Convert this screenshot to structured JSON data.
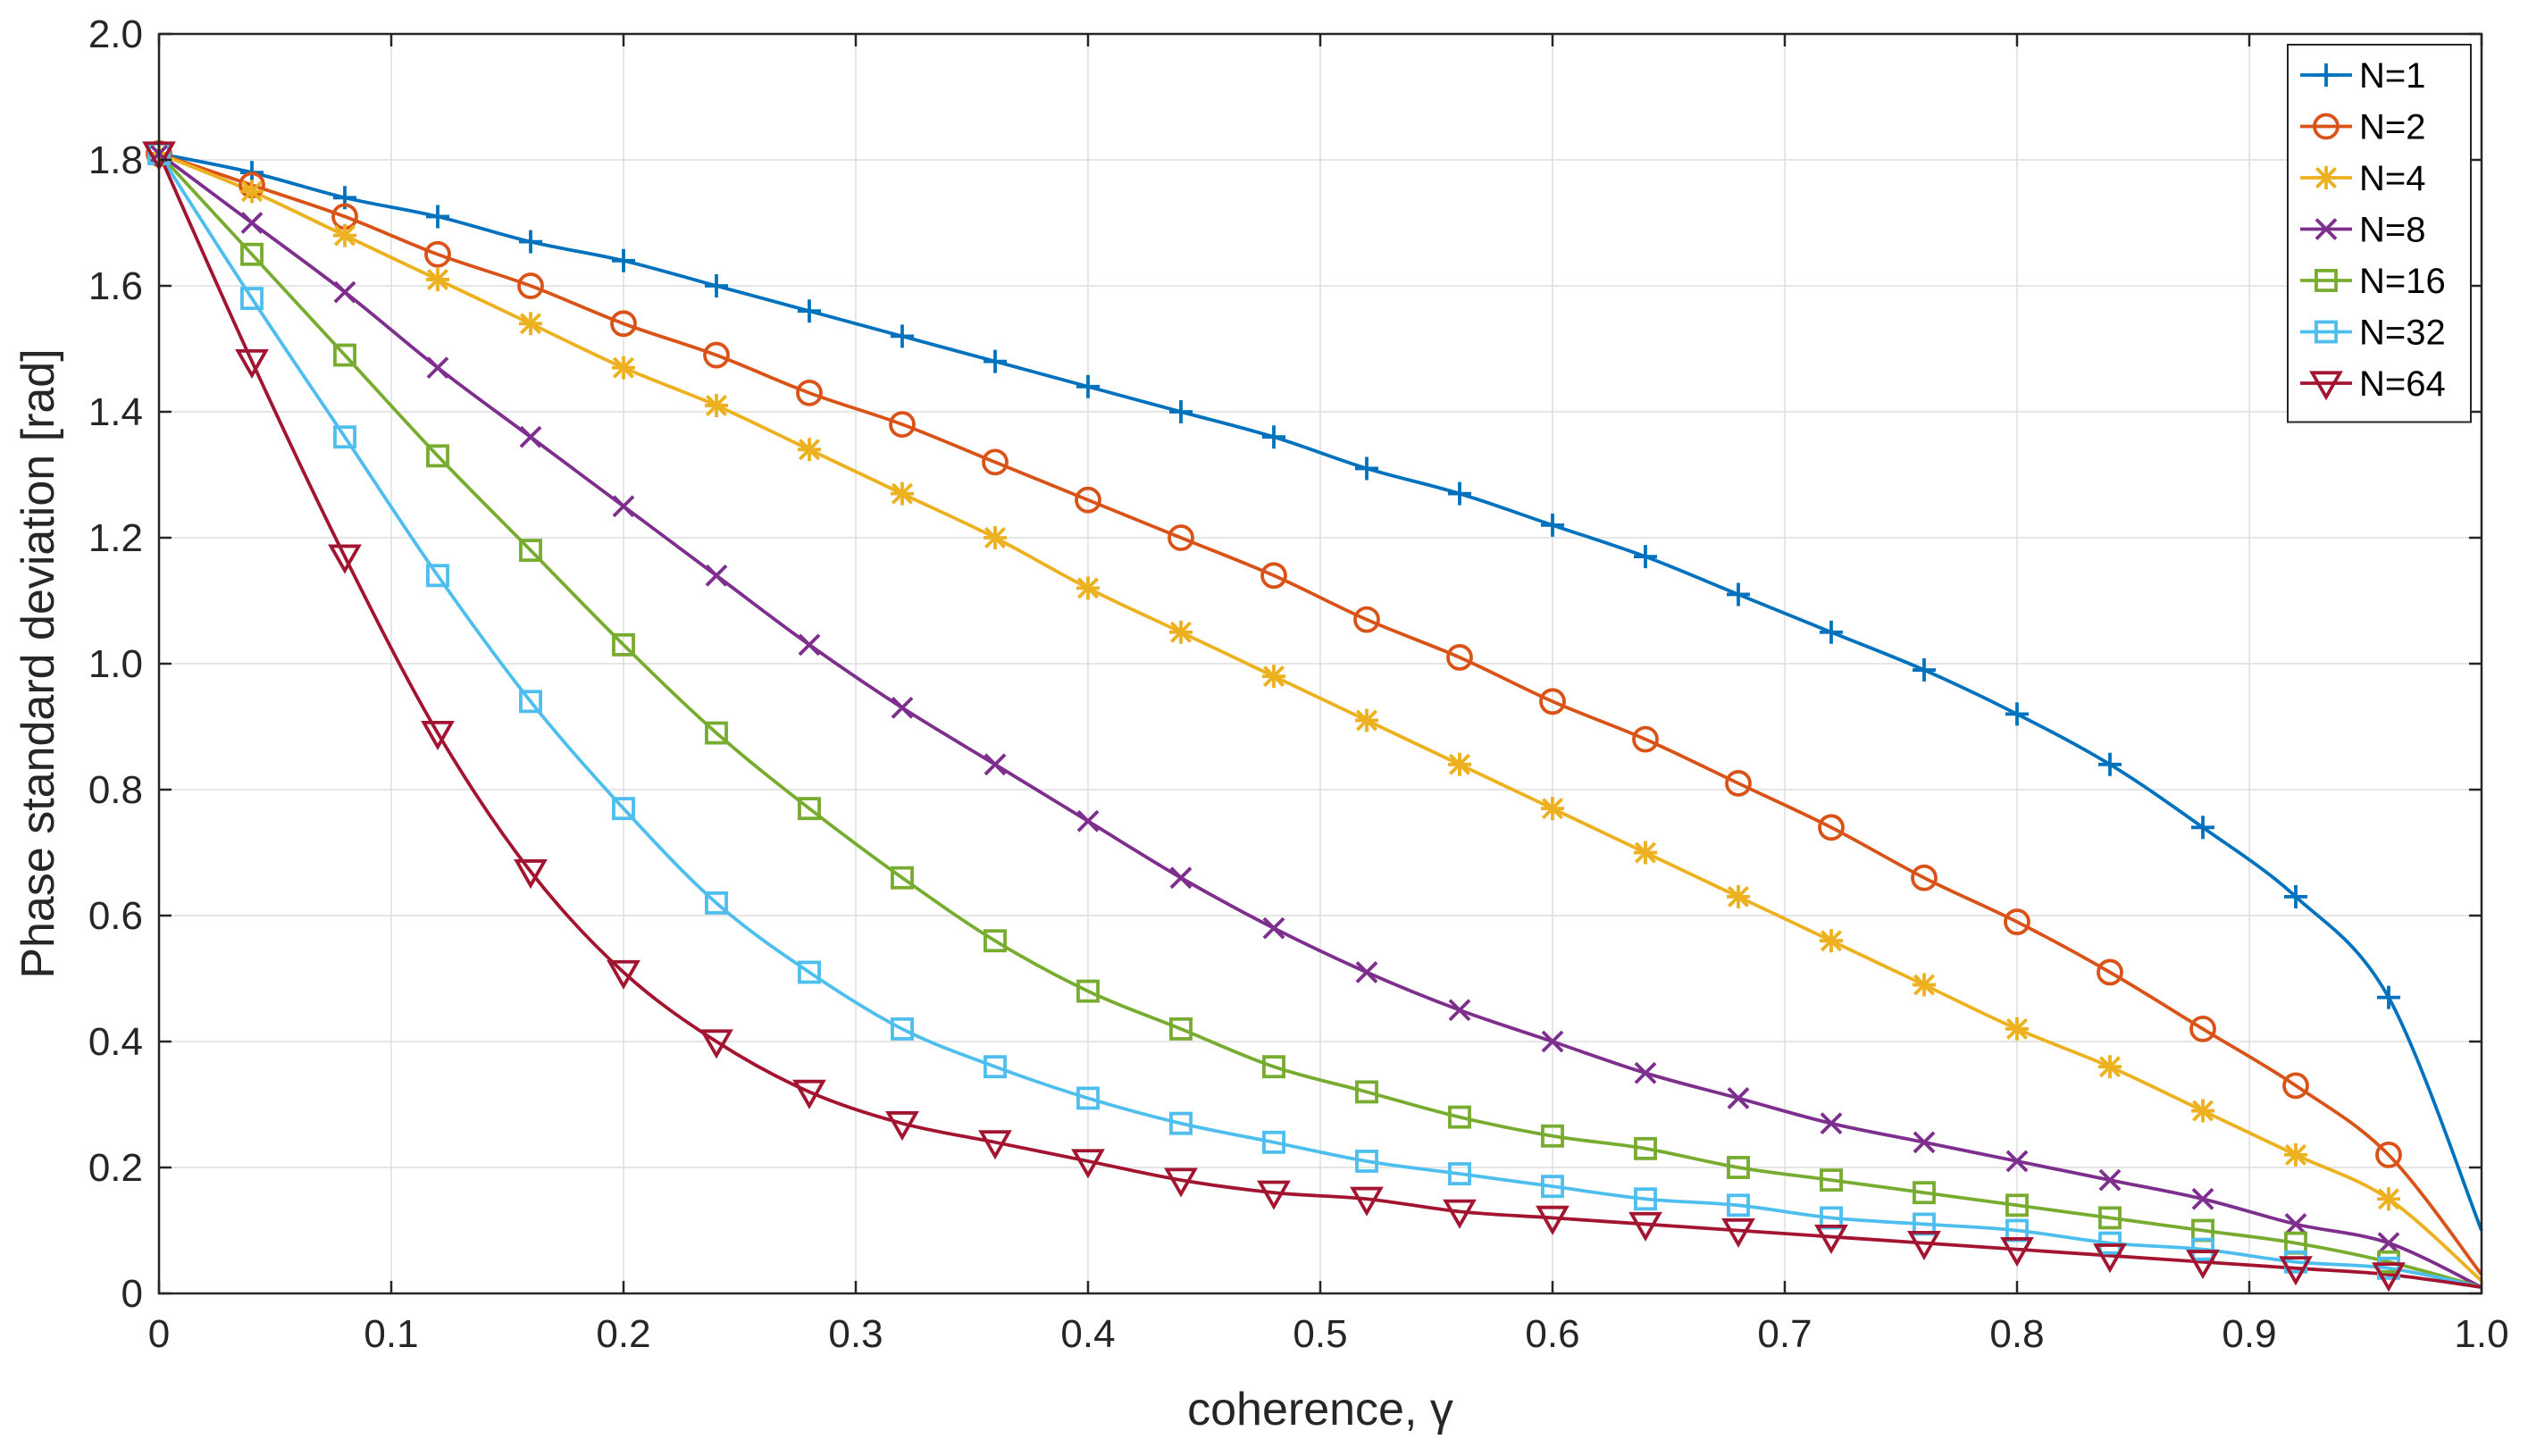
{
  "chart_data": {
    "type": "line",
    "title": "",
    "xlabel": "coherence, γ",
    "ylabel": "Phase standard deviation [rad]",
    "xlim": [
      0,
      1
    ],
    "ylim": [
      0,
      2
    ],
    "xticks": [
      0,
      0.1,
      0.2,
      0.3,
      0.4,
      0.5,
      0.6,
      0.7,
      0.8,
      0.9,
      1.0
    ],
    "xtick_labels": [
      "0",
      "0.1",
      "0.2",
      "0.3",
      "0.4",
      "0.5",
      "0.6",
      "0.7",
      "0.8",
      "0.9",
      "1.0"
    ],
    "yticks": [
      0,
      0.2,
      0.4,
      0.6,
      0.8,
      1.0,
      1.2,
      1.4,
      1.6,
      1.8,
      2.0
    ],
    "ytick_labels": [
      "0",
      "0.2",
      "0.4",
      "0.6",
      "0.8",
      "1.0",
      "1.2",
      "1.4",
      "1.6",
      "1.8",
      "2.0"
    ],
    "grid": true,
    "legend_position": "top-right",
    "x": [
      0,
      0.04,
      0.08,
      0.12,
      0.16,
      0.2,
      0.24,
      0.28,
      0.32,
      0.36,
      0.4,
      0.44,
      0.48,
      0.52,
      0.56,
      0.6,
      0.64,
      0.68,
      0.72,
      0.76,
      0.8,
      0.84,
      0.88,
      0.92,
      0.96
    ],
    "series": [
      {
        "name": "N=1",
        "color": "#0072BD",
        "marker": "plus",
        "end_value": 0.1,
        "values": [
          1.81,
          1.78,
          1.74,
          1.71,
          1.67,
          1.64,
          1.6,
          1.56,
          1.52,
          1.48,
          1.44,
          1.4,
          1.36,
          1.31,
          1.27,
          1.22,
          1.17,
          1.11,
          1.05,
          0.99,
          0.92,
          0.84,
          0.74,
          0.63,
          0.47
        ]
      },
      {
        "name": "N=2",
        "color": "#D95319",
        "marker": "circle",
        "end_value": 0.03,
        "values": [
          1.81,
          1.76,
          1.71,
          1.65,
          1.6,
          1.54,
          1.49,
          1.43,
          1.38,
          1.32,
          1.26,
          1.2,
          1.14,
          1.07,
          1.01,
          0.94,
          0.88,
          0.81,
          0.74,
          0.66,
          0.59,
          0.51,
          0.42,
          0.33,
          0.22
        ]
      },
      {
        "name": "N=4",
        "color": "#EDB120",
        "marker": "asterisk",
        "end_value": 0.02,
        "values": [
          1.81,
          1.75,
          1.68,
          1.61,
          1.54,
          1.47,
          1.41,
          1.34,
          1.27,
          1.2,
          1.12,
          1.05,
          0.98,
          0.91,
          0.84,
          0.77,
          0.7,
          0.63,
          0.56,
          0.49,
          0.42,
          0.36,
          0.29,
          0.22,
          0.15
        ]
      },
      {
        "name": "N=8",
        "color": "#7E2F8E",
        "marker": "x",
        "end_value": 0.01,
        "values": [
          1.81,
          1.7,
          1.59,
          1.47,
          1.36,
          1.25,
          1.14,
          1.03,
          0.93,
          0.84,
          0.75,
          0.66,
          0.58,
          0.51,
          0.45,
          0.4,
          0.35,
          0.31,
          0.27,
          0.24,
          0.21,
          0.18,
          0.15,
          0.11,
          0.08
        ]
      },
      {
        "name": "N=16",
        "color": "#77AC30",
        "marker": "square",
        "end_value": 0.01,
        "values": [
          1.81,
          1.65,
          1.49,
          1.33,
          1.18,
          1.03,
          0.89,
          0.77,
          0.66,
          0.56,
          0.48,
          0.42,
          0.36,
          0.32,
          0.28,
          0.25,
          0.23,
          0.2,
          0.18,
          0.16,
          0.14,
          0.12,
          0.1,
          0.08,
          0.05
        ]
      },
      {
        "name": "N=32",
        "color": "#4DBEEE",
        "marker": "square",
        "end_value": 0.01,
        "values": [
          1.81,
          1.58,
          1.36,
          1.14,
          0.94,
          0.77,
          0.62,
          0.51,
          0.42,
          0.36,
          0.31,
          0.27,
          0.24,
          0.21,
          0.19,
          0.17,
          0.15,
          0.14,
          0.12,
          0.11,
          0.1,
          0.08,
          0.07,
          0.05,
          0.04
        ]
      },
      {
        "name": "N=64",
        "color": "#A2142F",
        "marker": "triangle-down",
        "end_value": 0.01,
        "values": [
          1.81,
          1.48,
          1.17,
          0.89,
          0.67,
          0.51,
          0.4,
          0.32,
          0.27,
          0.24,
          0.21,
          0.18,
          0.16,
          0.15,
          0.13,
          0.12,
          0.11,
          0.1,
          0.09,
          0.08,
          0.07,
          0.06,
          0.05,
          0.04,
          0.03
        ]
      }
    ]
  }
}
